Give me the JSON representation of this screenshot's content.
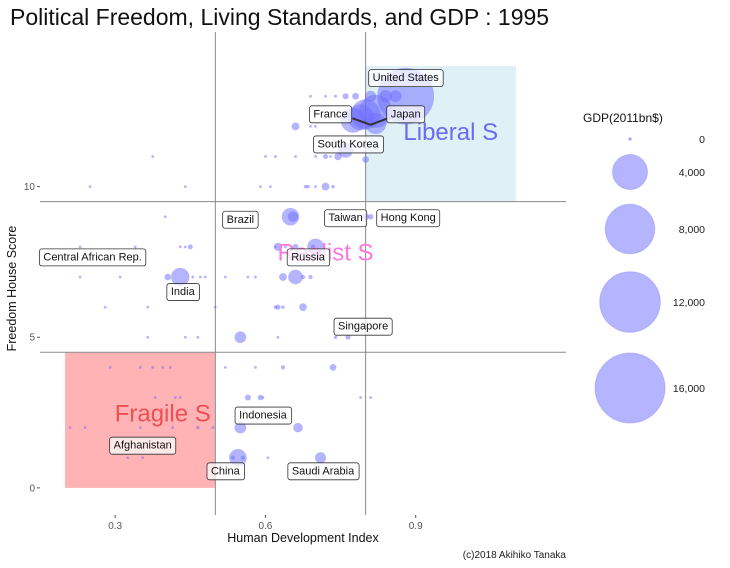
{
  "chart_data": {
    "type": "scatter",
    "title": "Political Freedom, Living Standards, and GDP : 1995",
    "xlabel": "Human Development Index",
    "ylabel": "Freedom House Score",
    "xlim": [
      0.15,
      1.2
    ],
    "ylim": [
      -0.9,
      14.8
    ],
    "x_ticks": [
      0.3,
      0.6,
      0.9
    ],
    "x_tick_labels": [
      "0.3",
      "0.6",
      "0.9"
    ],
    "y_ticks": [
      0,
      5,
      10
    ],
    "y_tick_labels": [
      "0",
      "5",
      "10"
    ],
    "grid": false,
    "reference_lines": {
      "vertical_hdi": [
        0.5,
        0.8
      ],
      "horizontal_score": [
        4.5,
        9.5
      ]
    },
    "regions": [
      {
        "name": "Liberal S",
        "x": [
          0.8,
          1.1
        ],
        "y": [
          9.5,
          14
        ],
        "fill": "#dff0f6",
        "label_color": "#6b6bf0",
        "label_x": 0.97,
        "label_y": 11.8
      },
      {
        "name": "Fragile S",
        "x": [
          0.2,
          0.5
        ],
        "y": [
          0,
          4.5
        ],
        "fill": "#ffb3b5",
        "label_color": "#f04e55",
        "label_x": 0.395,
        "label_y": 2.45
      },
      {
        "name": "Realist S",
        "x": null,
        "y": null,
        "fill": null,
        "label_color": "#ff77dd",
        "label_x": 0.72,
        "label_y": 7.8
      }
    ],
    "size_legend": {
      "title": "GDP(2011bn$)",
      "values": [
        0,
        4000,
        8000,
        12000,
        16000
      ],
      "labels": [
        "0",
        "4,000",
        "8,000",
        "12,000",
        "16,000"
      ],
      "placement": "right"
    },
    "point_color": "#6b6bff",
    "points": [
      {
        "hdi": 0.88,
        "score": 13.0,
        "gdp": 10500,
        "label": "United States"
      },
      {
        "hdi": 0.82,
        "score": 12.5,
        "gdp": 3600,
        "label": "Japan"
      },
      {
        "hdi": 0.79,
        "score": 12.3,
        "gdp": 2200,
        "label": "France"
      },
      {
        "hdi": 0.8,
        "score": 12.4,
        "gdp": 2900,
        "label": ""
      },
      {
        "hdi": 0.775,
        "score": 12.2,
        "gdp": 2000,
        "label": ""
      },
      {
        "hdi": 0.82,
        "score": 12.1,
        "gdp": 1500,
        "label": ""
      },
      {
        "hdi": 0.81,
        "score": 13.0,
        "gdp": 400,
        "label": ""
      },
      {
        "hdi": 0.84,
        "score": 13.0,
        "gdp": 500,
        "label": ""
      },
      {
        "hdi": 0.86,
        "score": 13.0,
        "gdp": 450,
        "label": ""
      },
      {
        "hdi": 0.78,
        "score": 13.0,
        "gdp": 150,
        "label": ""
      },
      {
        "hdi": 0.76,
        "score": 13.0,
        "gdp": 120,
        "label": ""
      },
      {
        "hdi": 0.74,
        "score": 13.0,
        "gdp": 30,
        "label": ""
      },
      {
        "hdi": 0.72,
        "score": 13.0,
        "gdp": 5,
        "label": ""
      },
      {
        "hdi": 0.69,
        "score": 13.0,
        "gdp": 5,
        "label": ""
      },
      {
        "hdi": 0.76,
        "score": 11.2,
        "gdp": 700,
        "label": "South Korea"
      },
      {
        "hdi": 0.8,
        "score": 10.9,
        "gdp": 150,
        "label": ""
      },
      {
        "hdi": 0.66,
        "score": 12.0,
        "gdp": 200,
        "label": ""
      },
      {
        "hdi": 0.69,
        "score": 12.0,
        "gdp": 20,
        "label": ""
      },
      {
        "hdi": 0.7,
        "score": 12.0,
        "gdp": 15,
        "label": ""
      },
      {
        "hdi": 0.74,
        "score": 11.4,
        "gdp": 5,
        "label": ""
      },
      {
        "hdi": 0.72,
        "score": 11.0,
        "gdp": 80,
        "label": ""
      },
      {
        "hdi": 0.73,
        "score": 11.0,
        "gdp": 20,
        "label": ""
      },
      {
        "hdi": 0.745,
        "score": 11.0,
        "gdp": 180,
        "label": ""
      },
      {
        "hdi": 0.7,
        "score": 11.0,
        "gdp": 20,
        "label": ""
      },
      {
        "hdi": 0.66,
        "score": 11.0,
        "gdp": 15,
        "label": ""
      },
      {
        "hdi": 0.62,
        "score": 11.0,
        "gdp": 5,
        "label": ""
      },
      {
        "hdi": 0.6,
        "score": 11.0,
        "gdp": 5,
        "label": ""
      },
      {
        "hdi": 0.375,
        "score": 11.0,
        "gdp": 5,
        "label": ""
      },
      {
        "hdi": 0.72,
        "score": 10.0,
        "gdp": 200,
        "label": ""
      },
      {
        "hdi": 0.735,
        "score": 10.0,
        "gdp": 40,
        "label": ""
      },
      {
        "hdi": 0.7,
        "score": 10.0,
        "gdp": 20,
        "label": ""
      },
      {
        "hdi": 0.685,
        "score": 10.0,
        "gdp": 40,
        "label": ""
      },
      {
        "hdi": 0.68,
        "score": 10.0,
        "gdp": 40,
        "label": ""
      },
      {
        "hdi": 0.61,
        "score": 10.0,
        "gdp": 5,
        "label": ""
      },
      {
        "hdi": 0.59,
        "score": 10.0,
        "gdp": 5,
        "label": ""
      },
      {
        "hdi": 0.44,
        "score": 10.0,
        "gdp": 5,
        "label": ""
      },
      {
        "hdi": 0.25,
        "score": 10.0,
        "gdp": 5,
        "label": ""
      },
      {
        "hdi": 0.65,
        "score": 9.0,
        "gdp": 1000,
        "label": "Brazil"
      },
      {
        "hdi": 0.655,
        "score": 9.0,
        "gdp": 350,
        "label": ""
      },
      {
        "hdi": 0.8,
        "score": 9.0,
        "gdp": 140,
        "label": "Taiwan"
      },
      {
        "hdi": 0.81,
        "score": 9.0,
        "gdp": 100,
        "label": "Hong Kong"
      },
      {
        "hdi": 0.53,
        "score": 9.0,
        "gdp": 5,
        "label": ""
      },
      {
        "hdi": 0.4,
        "score": 9.0,
        "gdp": 5,
        "label": ""
      },
      {
        "hdi": 0.7,
        "score": 8.0,
        "gdp": 900,
        "label": "Russia"
      },
      {
        "hdi": 0.695,
        "score": 8.0,
        "gdp": 60,
        "label": ""
      },
      {
        "hdi": 0.66,
        "score": 8.0,
        "gdp": 120,
        "label": ""
      },
      {
        "hdi": 0.625,
        "score": 8.0,
        "gdp": 220,
        "label": ""
      },
      {
        "hdi": 0.64,
        "score": 8.0,
        "gdp": 20,
        "label": ""
      },
      {
        "hdi": 0.62,
        "score": 8.0,
        "gdp": 20,
        "label": ""
      },
      {
        "hdi": 0.45,
        "score": 8.0,
        "gdp": 80,
        "label": ""
      },
      {
        "hdi": 0.44,
        "score": 8.0,
        "gdp": 20,
        "label": ""
      },
      {
        "hdi": 0.43,
        "score": 8.0,
        "gdp": 15,
        "label": ""
      },
      {
        "hdi": 0.34,
        "score": 8.0,
        "gdp": 5,
        "label": ""
      },
      {
        "hdi": 0.23,
        "score": 8.0,
        "gdp": 5,
        "label": "Central African Rep."
      },
      {
        "hdi": 0.43,
        "score": 7.0,
        "gdp": 1100,
        "label": "India"
      },
      {
        "hdi": 0.405,
        "score": 7.0,
        "gdp": 150,
        "label": ""
      },
      {
        "hdi": 0.455,
        "score": 7.0,
        "gdp": 20,
        "label": ""
      },
      {
        "hdi": 0.47,
        "score": 7.0,
        "gdp": 5,
        "label": ""
      },
      {
        "hdi": 0.66,
        "score": 7.0,
        "gdp": 700,
        "label": ""
      },
      {
        "hdi": 0.635,
        "score": 7.0,
        "gdp": 200,
        "label": ""
      },
      {
        "hdi": 0.675,
        "score": 7.0,
        "gdp": 60,
        "label": ""
      },
      {
        "hdi": 0.69,
        "score": 7.0,
        "gdp": 60,
        "label": ""
      },
      {
        "hdi": 0.58,
        "score": 7.0,
        "gdp": 5,
        "label": ""
      },
      {
        "hdi": 0.565,
        "score": 7.0,
        "gdp": 5,
        "label": ""
      },
      {
        "hdi": 0.52,
        "score": 7.0,
        "gdp": 5,
        "label": ""
      },
      {
        "hdi": 0.48,
        "score": 7.0,
        "gdp": 5,
        "label": ""
      },
      {
        "hdi": 0.31,
        "score": 7.0,
        "gdp": 5,
        "label": ""
      },
      {
        "hdi": 0.23,
        "score": 7.0,
        "gdp": 5,
        "label": ""
      },
      {
        "hdi": 0.365,
        "score": 6.0,
        "gdp": 5,
        "label": ""
      },
      {
        "hdi": 0.28,
        "score": 6.0,
        "gdp": 5,
        "label": ""
      },
      {
        "hdi": 0.5,
        "score": 6.0,
        "gdp": 10,
        "label": ""
      },
      {
        "hdi": 0.62,
        "score": 6.0,
        "gdp": 40,
        "label": ""
      },
      {
        "hdi": 0.625,
        "score": 6.0,
        "gdp": 90,
        "label": ""
      },
      {
        "hdi": 0.635,
        "score": 6.0,
        "gdp": 40,
        "label": ""
      },
      {
        "hdi": 0.675,
        "score": 6.0,
        "gdp": 200,
        "label": ""
      },
      {
        "hdi": 0.55,
        "score": 5.0,
        "gdp": 450,
        "label": ""
      },
      {
        "hdi": 0.625,
        "score": 5.0,
        "gdp": 10,
        "label": ""
      },
      {
        "hdi": 0.74,
        "score": 5.0,
        "gdp": 40,
        "label": "Singapore"
      },
      {
        "hdi": 0.765,
        "score": 5.0,
        "gdp": 80,
        "label": ""
      },
      {
        "hdi": 0.465,
        "score": 5.0,
        "gdp": 20,
        "label": ""
      },
      {
        "hdi": 0.44,
        "score": 5.0,
        "gdp": 10,
        "label": ""
      },
      {
        "hdi": 0.365,
        "score": 5.0,
        "gdp": 5,
        "label": ""
      },
      {
        "hdi": 0.29,
        "score": 4.0,
        "gdp": 5,
        "label": ""
      },
      {
        "hdi": 0.35,
        "score": 4.0,
        "gdp": 5,
        "label": ""
      },
      {
        "hdi": 0.375,
        "score": 4.0,
        "gdp": 30,
        "label": ""
      },
      {
        "hdi": 0.395,
        "score": 4.0,
        "gdp": 10,
        "label": ""
      },
      {
        "hdi": 0.41,
        "score": 4.0,
        "gdp": 25,
        "label": ""
      },
      {
        "hdi": 0.52,
        "score": 4.0,
        "gdp": 5,
        "label": ""
      },
      {
        "hdi": 0.58,
        "score": 4.0,
        "gdp": 10,
        "label": ""
      },
      {
        "hdi": 0.635,
        "score": 4.0,
        "gdp": 60,
        "label": ""
      },
      {
        "hdi": 0.735,
        "score": 4.0,
        "gdp": 150,
        "label": ""
      },
      {
        "hdi": 0.38,
        "score": 3.0,
        "gdp": 5,
        "label": ""
      },
      {
        "hdi": 0.42,
        "score": 3.0,
        "gdp": 5,
        "label": ""
      },
      {
        "hdi": 0.43,
        "score": 3.0,
        "gdp": 20,
        "label": ""
      },
      {
        "hdi": 0.565,
        "score": 3.0,
        "gdp": 120,
        "label": ""
      },
      {
        "hdi": 0.59,
        "score": 3.0,
        "gdp": 100,
        "label": ""
      },
      {
        "hdi": 0.595,
        "score": 3.0,
        "gdp": 20,
        "label": ""
      },
      {
        "hdi": 0.79,
        "score": 3.0,
        "gdp": 10,
        "label": ""
      },
      {
        "hdi": 0.81,
        "score": 3.0,
        "gdp": 10,
        "label": ""
      },
      {
        "hdi": 0.55,
        "score": 2.0,
        "gdp": 450,
        "label": "Indonesia"
      },
      {
        "hdi": 0.665,
        "score": 2.0,
        "gdp": 300,
        "label": ""
      },
      {
        "hdi": 0.21,
        "score": 2.0,
        "gdp": 5,
        "label": ""
      },
      {
        "hdi": 0.24,
        "score": 2.0,
        "gdp": 10,
        "label": ""
      },
      {
        "hdi": 0.35,
        "score": 2.0,
        "gdp": 5,
        "label": ""
      },
      {
        "hdi": 0.415,
        "score": 2.0,
        "gdp": 10,
        "label": ""
      },
      {
        "hdi": 0.465,
        "score": 2.0,
        "gdp": 40,
        "label": ""
      },
      {
        "hdi": 0.495,
        "score": 2.0,
        "gdp": 10,
        "label": "Afghanistan"
      },
      {
        "hdi": 0.325,
        "score": 1.0,
        "gdp": 20,
        "label": ""
      },
      {
        "hdi": 0.355,
        "score": 1.0,
        "gdp": 20,
        "label": ""
      },
      {
        "hdi": 0.545,
        "score": 1.0,
        "gdp": 1000,
        "label": "China"
      },
      {
        "hdi": 0.535,
        "score": 1.0,
        "gdp": 60,
        "label": ""
      },
      {
        "hdi": 0.555,
        "score": 1.0,
        "gdp": 60,
        "label": ""
      },
      {
        "hdi": 0.605,
        "score": 1.0,
        "gdp": 20,
        "label": ""
      },
      {
        "hdi": 0.71,
        "score": 1.0,
        "gdp": 400,
        "label": "Saudi Arabia"
      }
    ],
    "labels": [
      {
        "text": "United States",
        "hdi": 0.88,
        "score": 13.6
      },
      {
        "text": "France",
        "hdi": 0.73,
        "score": 12.4
      },
      {
        "text": "Japan",
        "hdi": 0.88,
        "score": 12.4
      },
      {
        "text": "South Korea",
        "hdi": 0.765,
        "score": 11.4
      },
      {
        "text": "Brazil",
        "hdi": 0.55,
        "score": 8.9
      },
      {
        "text": "Taiwan",
        "hdi": 0.76,
        "score": 8.95
      },
      {
        "text": "Hong Kong",
        "hdi": 0.885,
        "score": 8.95
      },
      {
        "text": "Central African Rep.",
        "hdi": 0.255,
        "score": 7.65
      },
      {
        "text": "Russia",
        "hdi": 0.685,
        "score": 7.65
      },
      {
        "text": "India",
        "hdi": 0.435,
        "score": 6.5
      },
      {
        "text": "Singapore",
        "hdi": 0.795,
        "score": 5.35
      },
      {
        "text": "Indonesia",
        "hdi": 0.595,
        "score": 2.4
      },
      {
        "text": "Afghanistan",
        "hdi": 0.355,
        "score": 1.4
      },
      {
        "text": "China",
        "hdi": 0.52,
        "score": 0.55
      },
      {
        "text": "Saudi Arabia",
        "hdi": 0.715,
        "score": 0.55
      }
    ],
    "caption": "(c)2018 Akihiko Tanaka"
  }
}
